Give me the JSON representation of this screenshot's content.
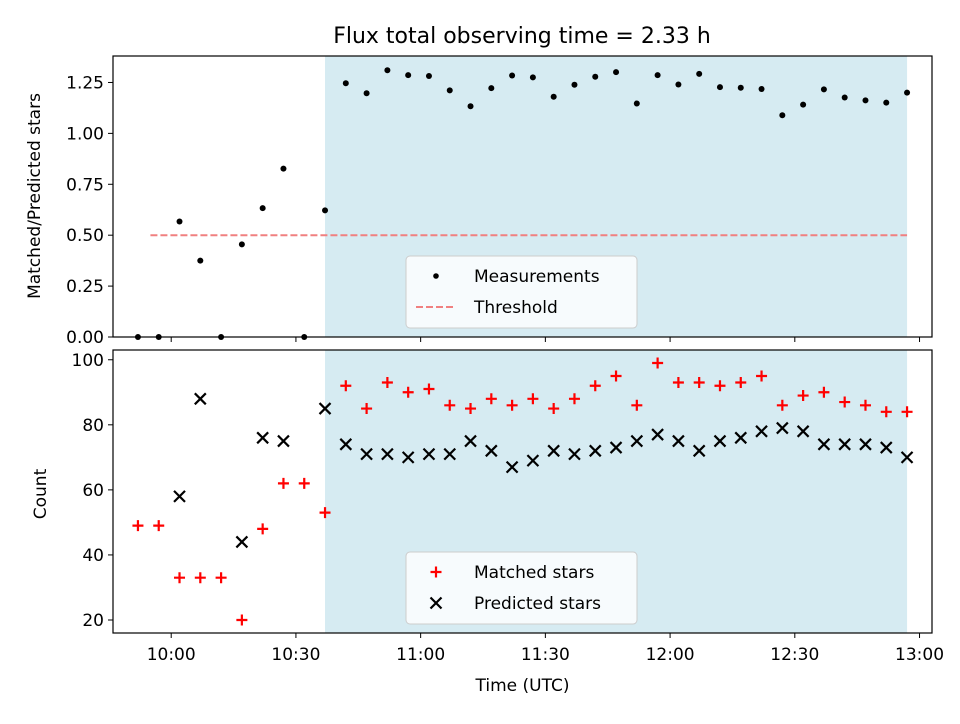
{
  "title": "Flux total observing time = 2.33 h",
  "colors": {
    "band": "#add8e6",
    "threshold": "#f08080",
    "matched": "#ff0000",
    "predicted": "#000000",
    "measurement": "#000000"
  },
  "chart_data": [
    {
      "type": "scatter",
      "title": "Flux total observing time = 2.33 h",
      "xlabel": "",
      "ylabel": "Matched/Predicted stars",
      "xlim": [
        "09:46",
        "13:03"
      ],
      "ylim": [
        0,
        1.38
      ],
      "yticks": [
        0.0,
        0.25,
        0.5,
        0.75,
        1.0,
        1.25
      ],
      "ytick_labels": [
        "0.00",
        "0.25",
        "0.50",
        "0.75",
        "1.00",
        "1.25"
      ],
      "shaded_span": [
        "10:37",
        "12:57"
      ],
      "legend_position": "lower-center",
      "series": [
        {
          "name": "Measurements",
          "marker": "dot",
          "points": [
            [
              "09:52",
              0.0
            ],
            [
              "09:57",
              0.0
            ],
            [
              "10:02",
              0.567
            ],
            [
              "10:07",
              0.375
            ],
            [
              "10:12",
              0.0
            ],
            [
              "10:17",
              0.455
            ],
            [
              "10:22",
              0.633
            ],
            [
              "10:27",
              0.827
            ],
            [
              "10:32",
              0.0
            ],
            [
              "10:37",
              0.622
            ],
            [
              "10:42",
              1.246
            ],
            [
              "10:47",
              1.197
            ],
            [
              "10:52",
              1.31
            ],
            [
              "10:57",
              1.286
            ],
            [
              "11:02",
              1.282
            ],
            [
              "11:07",
              1.211
            ],
            [
              "11:12",
              1.133
            ],
            [
              "11:17",
              1.222
            ],
            [
              "11:22",
              1.284
            ],
            [
              "11:27",
              1.275
            ],
            [
              "11:32",
              1.18
            ],
            [
              "11:37",
              1.239
            ],
            [
              "11:42",
              1.278
            ],
            [
              "11:47",
              1.301
            ],
            [
              "11:52",
              1.147
            ],
            [
              "11:57",
              1.286
            ],
            [
              "12:02",
              1.24
            ],
            [
              "12:07",
              1.292
            ],
            [
              "12:12",
              1.227
            ],
            [
              "12:17",
              1.224
            ],
            [
              "12:22",
              1.218
            ],
            [
              "12:27",
              1.089
            ],
            [
              "12:32",
              1.141
            ],
            [
              "12:37",
              1.216
            ],
            [
              "12:42",
              1.176
            ],
            [
              "12:47",
              1.162
            ],
            [
              "12:52",
              1.151
            ],
            [
              "12:57",
              1.2
            ]
          ]
        },
        {
          "name": "Threshold",
          "style": "dashed",
          "points": [
            [
              "09:55",
              0.5
            ],
            [
              "12:57",
              0.5
            ]
          ]
        }
      ]
    },
    {
      "type": "scatter",
      "xlabel": "Time (UTC)",
      "ylabel": "Count",
      "xlim": [
        "09:46",
        "13:03"
      ],
      "ylim": [
        16,
        103
      ],
      "yticks": [
        20,
        40,
        60,
        80,
        100
      ],
      "ytick_labels": [
        "20",
        "40",
        "60",
        "80",
        "100"
      ],
      "xticks": [
        "10:00",
        "10:30",
        "11:00",
        "11:30",
        "12:00",
        "12:30",
        "13:00"
      ],
      "shaded_span": [
        "10:37",
        "12:57"
      ],
      "legend_position": "lower-center",
      "series": [
        {
          "name": "Matched stars",
          "marker": "plus",
          "points": [
            [
              "09:52",
              49
            ],
            [
              "09:57",
              49
            ],
            [
              "10:02",
              33
            ],
            [
              "10:07",
              33
            ],
            [
              "10:12",
              33
            ],
            [
              "10:17",
              20
            ],
            [
              "10:22",
              48
            ],
            [
              "10:27",
              62
            ],
            [
              "10:32",
              62
            ],
            [
              "10:37",
              53
            ],
            [
              "10:42",
              92
            ],
            [
              "10:47",
              85
            ],
            [
              "10:52",
              93
            ],
            [
              "10:57",
              90
            ],
            [
              "11:02",
              91
            ],
            [
              "11:07",
              86
            ],
            [
              "11:12",
              85
            ],
            [
              "11:17",
              88
            ],
            [
              "11:22",
              86
            ],
            [
              "11:27",
              88
            ],
            [
              "11:32",
              85
            ],
            [
              "11:37",
              88
            ],
            [
              "11:42",
              92
            ],
            [
              "11:47",
              95
            ],
            [
              "11:52",
              86
            ],
            [
              "11:57",
              99
            ],
            [
              "12:02",
              93
            ],
            [
              "12:07",
              93
            ],
            [
              "12:12",
              92
            ],
            [
              "12:17",
              93
            ],
            [
              "12:22",
              95
            ],
            [
              "12:27",
              86
            ],
            [
              "12:32",
              89
            ],
            [
              "12:37",
              90
            ],
            [
              "12:42",
              87
            ],
            [
              "12:47",
              86
            ],
            [
              "12:52",
              84
            ],
            [
              "12:57",
              84
            ]
          ]
        },
        {
          "name": "Predicted stars",
          "marker": "x",
          "points": [
            [
              "10:02",
              58
            ],
            [
              "10:07",
              88
            ],
            [
              "10:17",
              44
            ],
            [
              "10:22",
              76
            ],
            [
              "10:27",
              75
            ],
            [
              "10:37",
              85
            ],
            [
              "10:42",
              74
            ],
            [
              "10:47",
              71
            ],
            [
              "10:52",
              71
            ],
            [
              "10:57",
              70
            ],
            [
              "11:02",
              71
            ],
            [
              "11:07",
              71
            ],
            [
              "11:12",
              75
            ],
            [
              "11:17",
              72
            ],
            [
              "11:22",
              67
            ],
            [
              "11:27",
              69
            ],
            [
              "11:32",
              72
            ],
            [
              "11:37",
              71
            ],
            [
              "11:42",
              72
            ],
            [
              "11:47",
              73
            ],
            [
              "11:52",
              75
            ],
            [
              "11:57",
              77
            ],
            [
              "12:02",
              75
            ],
            [
              "12:07",
              72
            ],
            [
              "12:12",
              75
            ],
            [
              "12:17",
              76
            ],
            [
              "12:22",
              78
            ],
            [
              "12:27",
              79
            ],
            [
              "12:32",
              78
            ],
            [
              "12:37",
              74
            ],
            [
              "12:42",
              74
            ],
            [
              "12:47",
              74
            ],
            [
              "12:52",
              73
            ],
            [
              "12:57",
              70
            ]
          ]
        }
      ]
    }
  ]
}
